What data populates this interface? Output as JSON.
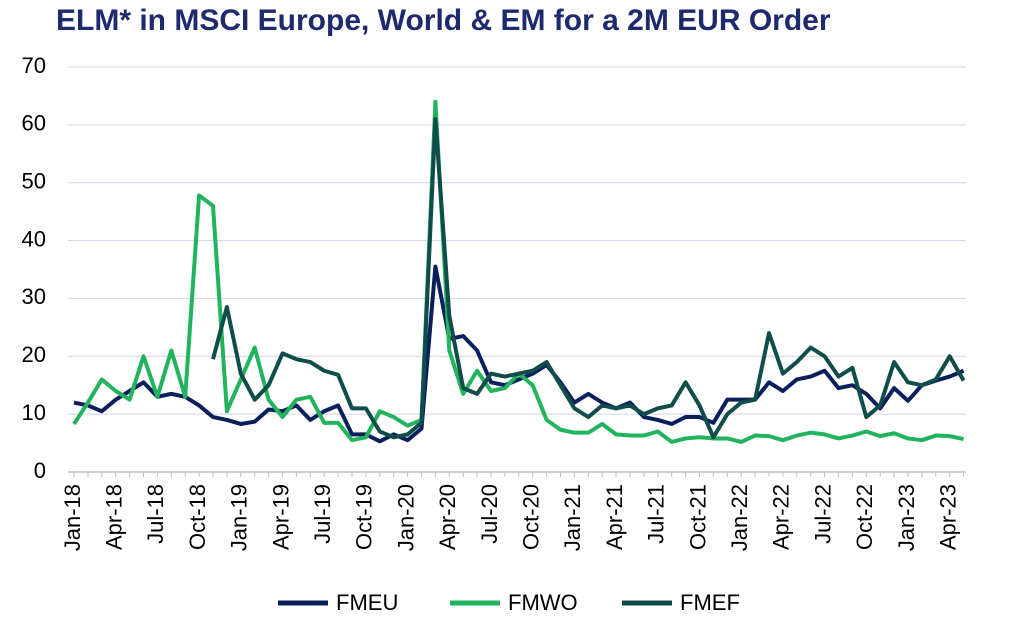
{
  "chart_data": {
    "type": "line",
    "title": "ELM* in MSCI Europe, World & EM for a 2M EUR Order",
    "categories": [
      "Jan-18",
      null,
      null,
      "Apr-18",
      null,
      null,
      "Jul-18",
      null,
      null,
      "Oct-18",
      null,
      null,
      "Jan-19",
      null,
      null,
      "Apr-19",
      null,
      null,
      "Jul-19",
      null,
      null,
      "Oct-19",
      null,
      null,
      "Jan-20",
      null,
      null,
      "Apr-20",
      null,
      null,
      "Jul-20",
      null,
      null,
      "Oct-20",
      null,
      null,
      "Jan-21",
      null,
      null,
      "Apr-21",
      null,
      null,
      "Jul-21",
      null,
      null,
      "Oct-21",
      null,
      null,
      "Jan-22",
      null,
      null,
      "Apr-22",
      null,
      null,
      "Jul-22",
      null,
      null,
      "Oct-22",
      null,
      null,
      "Jan-23",
      null,
      null,
      "Apr-23",
      null
    ],
    "series": [
      {
        "name": "FMEU",
        "color": "#0b1f5c",
        "values": [
          12,
          11.5,
          10.5,
          12.5,
          14,
          15.5,
          13,
          13.5,
          13,
          11.5,
          9.5,
          9,
          8.3,
          8.7,
          10.8,
          10.5,
          11.5,
          9,
          10.5,
          11.5,
          6.5,
          6.5,
          5.3,
          6.5,
          5.5,
          7.5,
          35.5,
          23,
          23.5,
          21,
          15.5,
          15,
          16,
          17,
          18.5,
          15.5,
          12,
          13.5,
          12,
          11,
          12,
          9.5,
          9,
          8.3,
          9.5,
          9.5,
          8.5,
          12.5,
          12.5,
          12.5,
          15.5,
          14,
          16,
          16.5,
          17.5,
          14.5,
          15,
          13.5,
          11,
          14.5,
          12.3,
          15,
          15.8,
          16.5,
          17.5
        ]
      },
      {
        "name": "FMWO",
        "color": "#22b35f",
        "values": [
          8.3,
          12,
          16,
          14,
          12.5,
          20,
          13,
          21,
          13,
          47.8,
          46,
          10.5,
          16,
          21.5,
          12.5,
          9.5,
          12.5,
          13,
          8.5,
          8.5,
          5.5,
          6,
          10.5,
          9.5,
          8,
          9,
          64,
          21,
          13.5,
          17.5,
          14,
          14.5,
          17,
          15,
          9,
          7.3,
          6.8,
          6.8,
          8.3,
          6.5,
          6.3,
          6.3,
          7,
          5.2,
          5.8,
          6,
          5.8,
          5.8,
          5.2,
          6.3,
          6.2,
          5.5,
          6.3,
          6.8,
          6.5,
          5.8,
          6.3,
          7,
          6.2,
          6.7,
          5.8,
          5.5,
          6.3,
          6.2,
          5.7
        ]
      },
      {
        "name": "FMEF",
        "color": "#0f4d4a",
        "values": [
          null,
          null,
          null,
          null,
          null,
          null,
          null,
          null,
          null,
          null,
          19.5,
          28.5,
          17,
          12.5,
          15,
          20.5,
          19.5,
          19,
          17.5,
          16.8,
          11,
          11,
          7,
          6,
          6.5,
          8.5,
          61,
          27,
          14.5,
          13.5,
          17,
          16.5,
          17,
          17.5,
          19,
          15,
          11,
          9.5,
          11.5,
          11,
          11.5,
          10,
          11,
          11.5,
          15.5,
          11.5,
          6,
          10,
          12,
          12.5,
          24,
          17,
          19,
          21.5,
          20,
          16.5,
          18,
          9.5,
          11.5,
          19,
          15.5,
          15,
          16,
          20,
          15.8
        ]
      }
    ],
    "ylim": [
      0,
      70
    ],
    "yticks": [
      0,
      10,
      20,
      30,
      40,
      50,
      60,
      70
    ],
    "grid": true,
    "legend": "bottom"
  }
}
